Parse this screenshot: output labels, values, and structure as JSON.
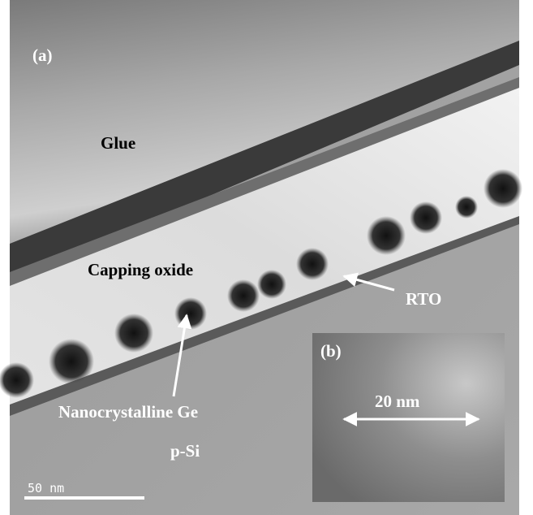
{
  "panel_label": "(a)",
  "inset_label": "(b)",
  "labels": {
    "glue": "Glue",
    "capping_oxide": "Capping oxide",
    "rto": "RTO",
    "nanocrystalline_ge": "Nanocrystalline Ge",
    "p_si": "p-Si"
  },
  "inset_scale": "20 nm",
  "scale_bar": "50 nm"
}
